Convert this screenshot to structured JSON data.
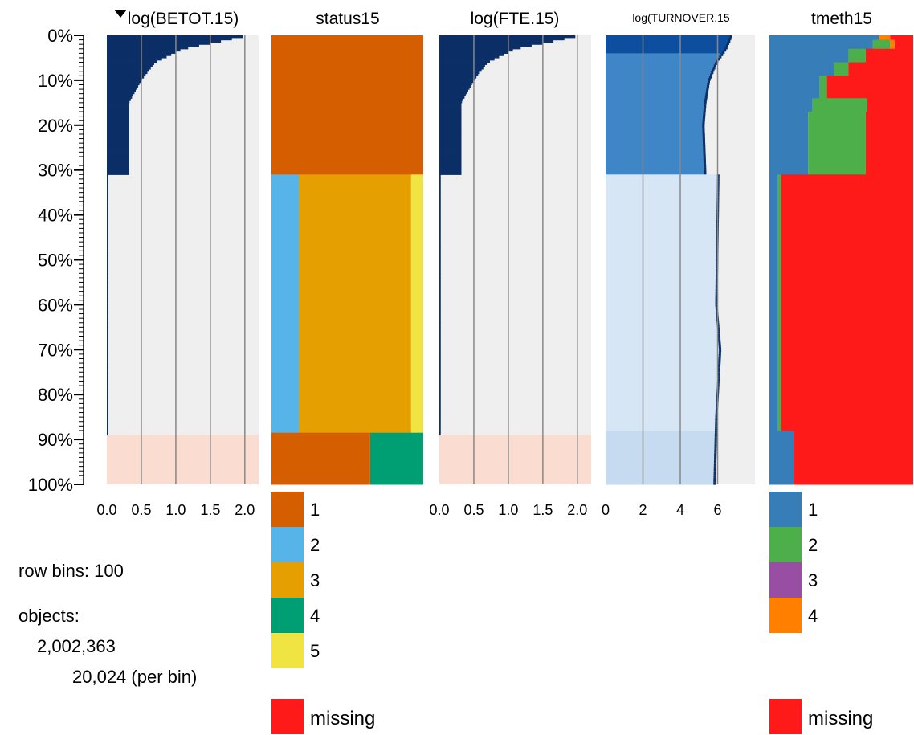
{
  "chart_data": {
    "type": "tableplot",
    "row_bins": 100,
    "y_axis": {
      "ticks": [
        "0%",
        "10%",
        "20%",
        "30%",
        "40%",
        "50%",
        "60%",
        "70%",
        "80%",
        "90%",
        "100%"
      ],
      "range_percent": [
        0,
        100
      ]
    },
    "info": {
      "row_bins_text": "row bins: 100",
      "objects_label": "objects:",
      "objects_total": "2,002,363",
      "objects_per_bin": "20,024 (per bin)"
    },
    "columns": [
      {
        "title": "log(BETOT.15)",
        "kind": "numeric",
        "xlim": [
          0,
          2.2
        ],
        "ticks": [
          "0.0",
          "0.5",
          "1.0",
          "1.5",
          "2.0"
        ],
        "tick_values": [
          0,
          0.5,
          1,
          1.5,
          2
        ],
        "gridlines": [
          0.5,
          1,
          1.5,
          2
        ],
        "profile": [
          [
            0,
            2.05
          ],
          [
            3,
            1.1
          ],
          [
            6,
            0.7
          ],
          [
            10,
            0.5
          ],
          [
            15,
            0.32
          ],
          [
            20,
            0.32
          ],
          [
            31,
            0.32
          ],
          [
            31.2,
            0.02
          ],
          [
            89,
            0.02
          ]
        ],
        "bar_until_percent": 89,
        "missing_from_percent": 89,
        "colors": {
          "bar": "#0b2f66",
          "background": "#efefef",
          "missing_band": "#fbdcd0"
        }
      },
      {
        "title": "status15",
        "kind": "categorical",
        "categories": [
          "1",
          "2",
          "3",
          "4",
          "5"
        ],
        "category_colors": [
          "#d55e00",
          "#56b4e9",
          "#e69f00",
          "#009e73",
          "#f0e442"
        ],
        "missing_label": "missing",
        "missing_color": "#ff1a1a",
        "segments": [
          {
            "from": 0,
            "to": 31,
            "shares": [
              1,
              0,
              0,
              0,
              0
            ]
          },
          {
            "from": 31,
            "to": 88.5,
            "shares": [
              0,
              0.18,
              0.74,
              0,
              0.08
            ]
          },
          {
            "from": 88.5,
            "to": 100,
            "shares": [
              0.65,
              0,
              0,
              0.35,
              0
            ]
          }
        ]
      },
      {
        "title": "log(FTE.15)",
        "kind": "numeric",
        "xlim": [
          0,
          2.2
        ],
        "ticks": [
          "0.0",
          "0.5",
          "1.0",
          "1.5",
          "2.0"
        ],
        "tick_values": [
          0,
          0.5,
          1,
          1.5,
          2
        ],
        "gridlines": [
          0.5,
          1,
          1.5,
          2
        ],
        "profile": [
          [
            0,
            2.05
          ],
          [
            3,
            1.1
          ],
          [
            6,
            0.7
          ],
          [
            10,
            0.5
          ],
          [
            15,
            0.32
          ],
          [
            20,
            0.32
          ],
          [
            31,
            0.32
          ],
          [
            31.2,
            0.02
          ],
          [
            89,
            0.02
          ]
        ],
        "bar_until_percent": 89,
        "missing_from_percent": 89,
        "colors": {
          "bar": "#0b2f66",
          "background": "#efefef",
          "missing_band": "#fbdcd0"
        }
      },
      {
        "title": "log(TURNOVER.15",
        "kind": "numeric",
        "xlim": [
          0,
          8
        ],
        "ticks": [
          "0",
          "2",
          "4",
          "6"
        ],
        "tick_values": [
          0,
          2,
          4,
          6
        ],
        "gridlines": [
          2,
          4,
          6
        ],
        "profile": [
          [
            0,
            6.8
          ],
          [
            3,
            6.5
          ],
          [
            6,
            6.0
          ],
          [
            10,
            5.6
          ],
          [
            15,
            5.4
          ],
          [
            20,
            5.3
          ],
          [
            31,
            5.4
          ],
          [
            31.2,
            6.1
          ],
          [
            60,
            6.0
          ],
          [
            70,
            6.2
          ],
          [
            85,
            6.0
          ],
          [
            100,
            5.9
          ]
        ],
        "bar_until_percent": 100,
        "colors": {
          "bar_top": "#0d4f9e",
          "bar_mid": "#3f86c6",
          "bar_light": "#d6e6f5",
          "bar_bottom": "#c6dbef",
          "background": "#efefef",
          "line": "#0b2f66"
        }
      },
      {
        "title": "tmeth15",
        "kind": "categorical",
        "categories": [
          "1",
          "2",
          "3",
          "4"
        ],
        "category_colors": [
          "#377eb8",
          "#4daf4a",
          "#984ea3",
          "#ff7f00"
        ],
        "missing_label": "missing",
        "missing_color": "#ff1a1a",
        "segments": [
          {
            "from": 0,
            "to": 1,
            "shares": [
              0.76,
              0,
              0,
              0.08
            ],
            "missing": 0.16
          },
          {
            "from": 1,
            "to": 3,
            "shares": [
              0.72,
              0.12,
              0,
              0.03
            ],
            "missing": 0.13
          },
          {
            "from": 3,
            "to": 6,
            "shares": [
              0.55,
              0.12,
              0,
              0
            ],
            "missing": 0.33
          },
          {
            "from": 6,
            "to": 9,
            "shares": [
              0.45,
              0.1,
              0,
              0
            ],
            "missing": 0.45
          },
          {
            "from": 9,
            "to": 14,
            "shares": [
              0.35,
              0.05,
              0,
              0
            ],
            "missing": 0.6
          },
          {
            "from": 14,
            "to": 17,
            "shares": [
              0.3,
              0.38,
              0,
              0
            ],
            "missing": 0.32
          },
          {
            "from": 17,
            "to": 31,
            "shares": [
              0.27,
              0.4,
              0,
              0
            ],
            "missing": 0.33
          },
          {
            "from": 31,
            "to": 88,
            "shares": [
              0.06,
              0.02,
              0,
              0
            ],
            "missing": 0.92
          },
          {
            "from": 88,
            "to": 100,
            "shares": [
              0.17,
              0,
              0,
              0
            ],
            "missing": 0.83
          }
        ]
      }
    ]
  }
}
